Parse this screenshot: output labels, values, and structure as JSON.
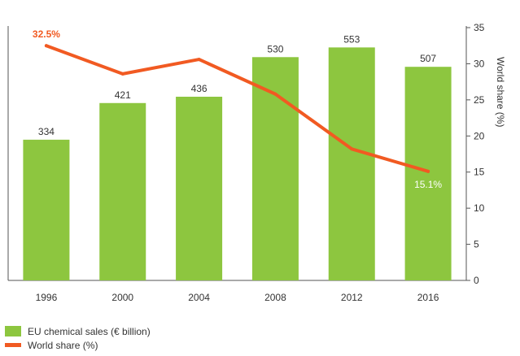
{
  "chart_data": {
    "type": "bar+line",
    "categories": [
      "1996",
      "2000",
      "2004",
      "2008",
      "2012",
      "2016"
    ],
    "series": [
      {
        "name": "EU chemical sales (€ billion)",
        "type": "bar",
        "axis": "left",
        "values": [
          334,
          421,
          436,
          530,
          553,
          507
        ],
        "labels": [
          "334",
          "421",
          "436",
          "530",
          "553",
          "507"
        ]
      },
      {
        "name": "World share (%)",
        "type": "line",
        "axis": "right",
        "values": [
          32.5,
          28.6,
          30.6,
          25.8,
          18.2,
          15.1
        ]
      }
    ],
    "annotations": [
      {
        "category": "1996",
        "text": "32.5%"
      },
      {
        "category": "2016",
        "text": "15.1%"
      }
    ],
    "left_ylim": [
      0,
      600
    ],
    "right_ylabel": "World share (%)",
    "right_ylim": [
      0,
      35
    ],
    "right_ticks": [
      "0",
      "5",
      "10",
      "15",
      "20",
      "25",
      "30",
      "35"
    ],
    "colors": {
      "bar": "#8dc63f",
      "line": "#f15a22",
      "axis": "#555555",
      "text": "#333333",
      "line_label_on_bar": "#ffffff"
    }
  }
}
